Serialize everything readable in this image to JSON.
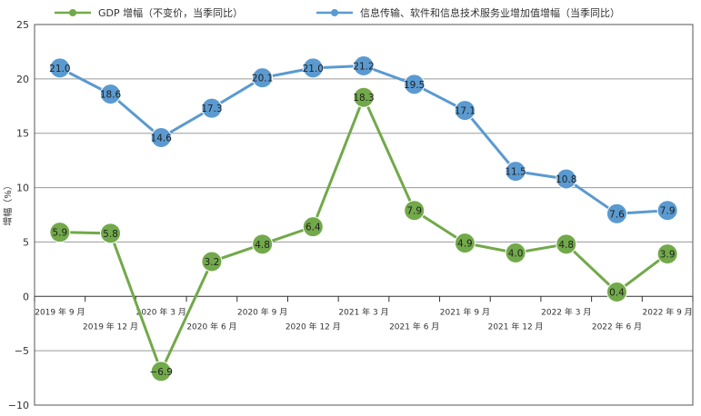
{
  "chart_data": {
    "type": "line",
    "ylabel": "增幅（%）",
    "ylim": [
      -10,
      25
    ],
    "yticks": [
      "25",
      "20",
      "15",
      "10",
      "5",
      "0",
      "−5",
      "−10"
    ],
    "grid": true,
    "legend_position": "top",
    "categories": [
      "2019 年 9 月",
      "2019 年 12 月",
      "2020 年 3 月",
      "2020 年 6 月",
      "2020 年 9 月",
      "2020 年 12 月",
      "2021 年 3 月",
      "2021 年 6 月",
      "2021 年 9 月",
      "2021 年 12 月",
      "2022 年 3 月",
      "2022 年 6 月",
      "2022 年 9 月"
    ],
    "series": [
      {
        "name": "GDP 增幅（不变价，当季同比）",
        "color": "#72a94a",
        "values": [
          5.9,
          5.8,
          -6.9,
          3.2,
          4.8,
          6.4,
          18.3,
          7.9,
          4.9,
          4.0,
          4.8,
          0.4,
          3.9
        ],
        "labels": [
          "5.9",
          "5.8",
          "−6.9",
          "3.2",
          "4.8",
          "6.4",
          "18.3",
          "7.9",
          "4.9",
          "4.0",
          "4.8",
          "0.4",
          "3.9"
        ]
      },
      {
        "name": "信息传输、软件和信息技术服务业增加值增幅（当季同比）",
        "color": "#5a9ad0",
        "values": [
          21.0,
          18.6,
          14.6,
          17.3,
          20.1,
          21.0,
          21.2,
          19.5,
          17.1,
          11.5,
          10.8,
          7.6,
          7.9
        ],
        "labels": [
          "21.0",
          "18.6",
          "14.6",
          "17.3",
          "20.1",
          "21.0",
          "21.2",
          "19.5",
          "17.1",
          "11.5",
          "10.8",
          "7.6",
          "7.9"
        ]
      }
    ]
  }
}
